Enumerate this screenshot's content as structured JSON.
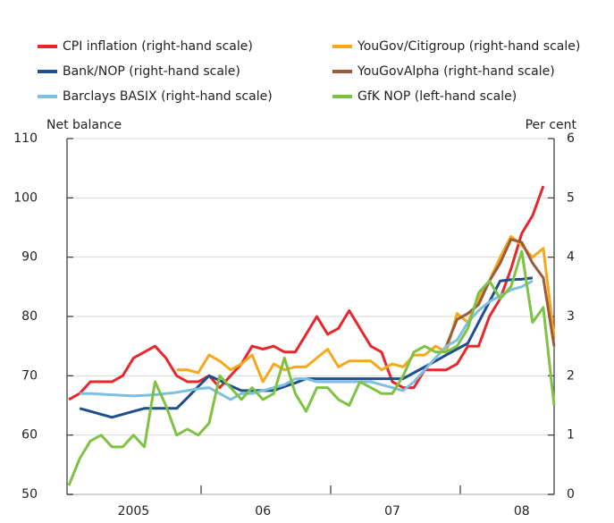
{
  "chart_data": {
    "type": "line",
    "y_label": "Net balance",
    "y2_label": "Per cent",
    "ylim": [
      50,
      110
    ],
    "yticks": [
      50,
      60,
      70,
      80,
      90,
      100,
      110
    ],
    "y2lim": [
      0,
      6
    ],
    "y2ticks": [
      0,
      1,
      2,
      3,
      4,
      5,
      6
    ],
    "grid": true,
    "categories": [
      null,
      null,
      null,
      null,
      null,
      null,
      "2005",
      null,
      null,
      null,
      null,
      null,
      null,
      null,
      null,
      null,
      null,
      null,
      "06",
      null,
      null,
      null,
      null,
      null,
      null,
      null,
      null,
      null,
      null,
      null,
      "07",
      null,
      null,
      null,
      null,
      null,
      null,
      null,
      null,
      null,
      null,
      null,
      "08",
      null,
      null,
      null
    ],
    "series": [
      {
        "name": "CPI inflation (right-hand scale)",
        "color": "#e8262b",
        "axis": "y2",
        "values": [
          1.6,
          1.7,
          1.9,
          1.9,
          1.9,
          2.0,
          2.3,
          2.4,
          2.5,
          2.3,
          2.0,
          1.9,
          1.9,
          2.0,
          1.8,
          2.0,
          2.2,
          2.5,
          2.45,
          2.5,
          2.4,
          2.4,
          2.7,
          3.0,
          2.7,
          2.8,
          3.1,
          2.8,
          2.5,
          2.4,
          1.9,
          1.8,
          1.8,
          2.1,
          2.1,
          2.1,
          2.2,
          2.5,
          2.5,
          3.0,
          3.3,
          3.8,
          4.4,
          4.7,
          5.2,
          null
        ]
      },
      {
        "name": "YouGov/Citigroup (right-hand scale)",
        "color": "#f5a81c",
        "axis": "y2",
        "values": [
          null,
          null,
          null,
          null,
          null,
          null,
          null,
          null,
          null,
          null,
          2.1,
          2.1,
          2.05,
          2.35,
          2.25,
          2.1,
          2.2,
          2.35,
          1.9,
          2.2,
          2.1,
          2.15,
          2.15,
          2.3,
          2.45,
          2.15,
          2.25,
          2.25,
          2.25,
          2.1,
          2.2,
          2.15,
          2.35,
          2.35,
          2.5,
          2.4,
          3.05,
          2.9,
          3.3,
          3.6,
          4.0,
          4.35,
          4.2,
          4.0,
          4.15,
          2.65
        ]
      },
      {
        "name": "Bank/NOP (right-hand scale)",
        "color": "#1f4e8c",
        "axis": "y2",
        "values": [
          null,
          1.45,
          1.4,
          1.35,
          1.3,
          1.35,
          1.4,
          1.45,
          1.45,
          1.45,
          1.45,
          1.63,
          1.82,
          2.0,
          1.92,
          1.83,
          1.75,
          1.75,
          1.75,
          1.75,
          1.82,
          1.88,
          1.95,
          1.95,
          1.95,
          1.95,
          1.95,
          1.95,
          1.95,
          1.95,
          1.95,
          1.95,
          2.05,
          2.15,
          2.25,
          2.35,
          2.45,
          2.55,
          2.9,
          3.25,
          3.6,
          3.62,
          3.63,
          3.65,
          null,
          null
        ]
      },
      {
        "name": "YouGovAlpha (right-hand scale)",
        "color": "#9c5a3c",
        "axis": "y2",
        "values": [
          null,
          null,
          null,
          null,
          null,
          null,
          null,
          null,
          null,
          null,
          null,
          null,
          null,
          null,
          null,
          null,
          null,
          null,
          null,
          null,
          null,
          null,
          null,
          null,
          null,
          null,
          null,
          null,
          null,
          null,
          null,
          null,
          null,
          null,
          null,
          2.5,
          2.95,
          3.05,
          3.2,
          3.6,
          3.9,
          4.3,
          4.25,
          3.9,
          3.65,
          2.5
        ]
      },
      {
        "name": "Barclays BASIX (right-hand scale)",
        "color": "#7dbfe0",
        "axis": "y2",
        "values": [
          null,
          1.7,
          1.7,
          1.69,
          1.68,
          1.67,
          1.66,
          1.67,
          1.68,
          1.7,
          1.72,
          1.75,
          1.78,
          1.8,
          1.7,
          1.6,
          1.7,
          1.7,
          1.75,
          1.8,
          1.85,
          1.95,
          1.95,
          1.9,
          1.9,
          1.9,
          1.9,
          1.9,
          1.9,
          1.85,
          1.8,
          1.75,
          1.9,
          2.1,
          2.3,
          2.5,
          2.6,
          2.9,
          3.1,
          3.25,
          3.35,
          3.45,
          3.5,
          3.6,
          null,
          null
        ]
      },
      {
        "name": "GfK NOP (left-hand scale)",
        "color": "#7ec242",
        "axis": "y",
        "values": [
          51.5,
          56,
          59,
          60,
          58,
          58,
          60,
          58,
          69,
          65,
          60,
          61,
          60,
          62,
          70,
          68,
          66,
          68,
          66,
          67,
          73,
          67,
          64,
          68,
          68,
          66,
          65,
          69,
          68,
          67,
          67,
          70,
          74,
          75,
          74,
          74,
          75,
          78,
          84,
          86,
          83,
          85,
          91,
          79,
          81.5,
          65
        ]
      }
    ]
  }
}
